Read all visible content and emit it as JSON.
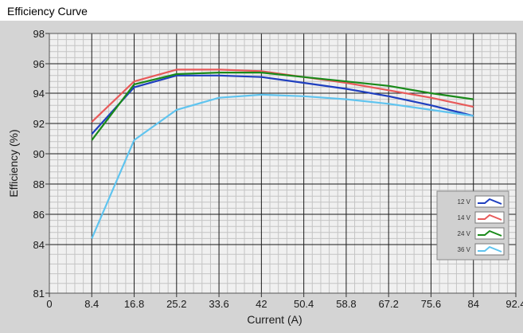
{
  "window": {
    "title": "Efficiency Curve"
  },
  "chart_data": {
    "type": "line",
    "title": "Efficiency Curve",
    "xlabel": "Current (A)",
    "ylabel": "Efficiency (%)",
    "xlim": [
      0,
      92.4
    ],
    "ylim": [
      81,
      98
    ],
    "x_ticks": [
      "0",
      "8.4",
      "16.8",
      "25.2",
      "33.6",
      "42",
      "50.4",
      "58.8",
      "67.2",
      "75.6",
      "84",
      "92.4"
    ],
    "y_ticks": [
      "81",
      "84",
      "86",
      "88",
      "90",
      "92",
      "94",
      "96",
      "98"
    ],
    "grid": true,
    "legend_position": "right",
    "x": [
      8.4,
      16.8,
      25.2,
      33.6,
      42,
      50.4,
      58.8,
      67.2,
      75.6,
      84
    ],
    "series": [
      {
        "name": "12 V",
        "color": "#1f3fbf",
        "values": [
          91.3,
          94.4,
          95.2,
          95.2,
          95.1,
          94.7,
          94.3,
          93.8,
          93.2,
          92.5
        ]
      },
      {
        "name": "14 V",
        "color": "#e85a5a",
        "values": [
          92.1,
          94.8,
          95.6,
          95.6,
          95.5,
          95.1,
          94.7,
          94.2,
          93.7,
          93.1
        ]
      },
      {
        "name": "24 V",
        "color": "#1a8a1a",
        "values": [
          90.9,
          94.6,
          95.3,
          95.4,
          95.4,
          95.1,
          94.8,
          94.5,
          94.0,
          93.6
        ]
      },
      {
        "name": "36 V",
        "color": "#5fc4ef",
        "values": [
          84.4,
          90.9,
          92.9,
          93.7,
          93.9,
          93.8,
          93.6,
          93.3,
          92.9,
          92.5
        ]
      }
    ]
  }
}
